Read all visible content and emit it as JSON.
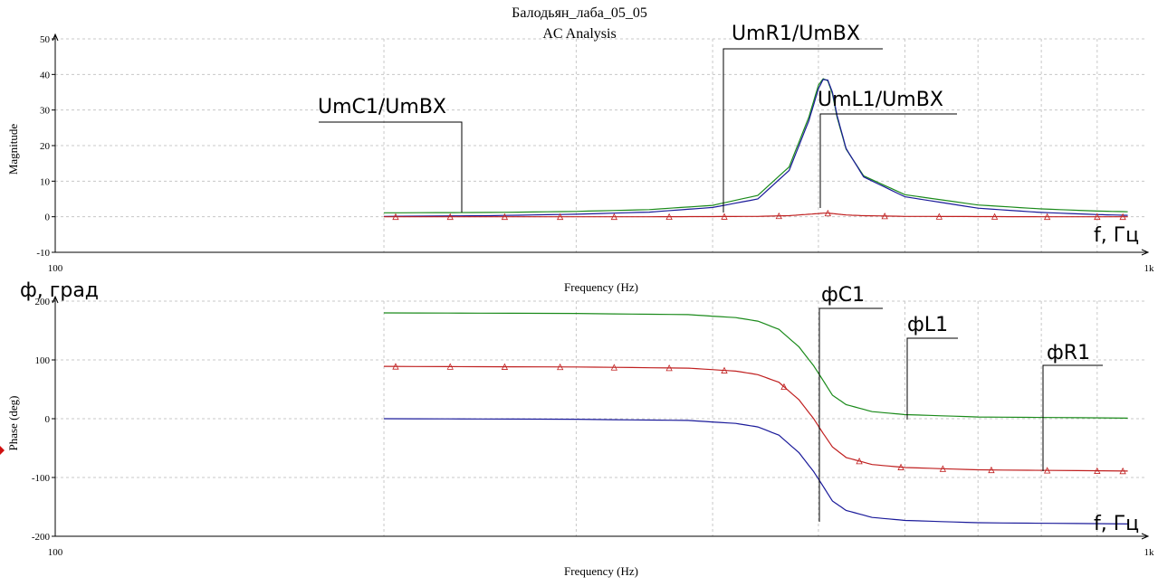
{
  "window": {
    "title": "Балодьян_лаба_05_05",
    "subtitle": "AC Analysis"
  },
  "annotations": {
    "mag_c1": "UmC1/UmBX",
    "mag_r1": "UmR1/UmBX",
    "mag_l1": "UmL1/UmBX",
    "mag_freq_unit": "f, Гц",
    "phase_unit": "ф, град",
    "phase_c1": "фC1",
    "phase_l1": "фL1",
    "phase_r1": "фR1",
    "phase_freq_unit": "f, Гц"
  },
  "colors": {
    "background": "#ffffff",
    "grid": "#c8c8c8",
    "axis": "#000000",
    "series_green": "#1a8a1a",
    "series_blue": "#1a1a9a",
    "series_red": "#c02020",
    "marker": "#c02020"
  },
  "chart_data": [
    {
      "type": "line",
      "xscale": "log",
      "xlabel": "Frequency (Hz)",
      "ylabel": "Magnitude",
      "xlim": [
        100,
        1000
      ],
      "ylim": [
        -10,
        50
      ],
      "x_ticks": [
        "100",
        "1k"
      ],
      "y_ticks": [
        -10,
        0,
        10,
        20,
        30,
        40,
        50
      ],
      "grid": true,
      "series": [
        {
          "color": "green",
          "x": [
            200,
            250,
            300,
            350,
            400,
            440,
            470,
            490,
            500,
            505,
            510,
            515,
            520,
            530,
            550,
            600,
            700,
            800,
            900,
            960
          ],
          "y": [
            1.1,
            1.2,
            1.5,
            2.0,
            3.2,
            6,
            14,
            28,
            37,
            38.8,
            38.2,
            34.5,
            28,
            19,
            11.5,
            6.2,
            3.3,
            2.2,
            1.6,
            1.4
          ]
        },
        {
          "color": "blue",
          "x": [
            200,
            250,
            300,
            350,
            400,
            440,
            470,
            490,
            500,
            505,
            510,
            515,
            520,
            530,
            550,
            600,
            700,
            800,
            900,
            960
          ],
          "y": [
            0.1,
            0.3,
            0.7,
            1.3,
            2.6,
            5,
            13,
            27,
            36,
            38.6,
            38.4,
            35,
            28.5,
            19.2,
            11.2,
            5.6,
            2.4,
            1.2,
            0.6,
            0.4
          ]
        },
        {
          "color": "red",
          "x": [
            200,
            250,
            300,
            350,
            400,
            440,
            470,
            490,
            500,
            505,
            510,
            515,
            520,
            530,
            550,
            600,
            700,
            800,
            900,
            960
          ],
          "y": [
            0,
            0,
            0,
            0,
            0.05,
            0.1,
            0.3,
            0.7,
            0.9,
            1.0,
            1.0,
            0.9,
            0.75,
            0.5,
            0.3,
            0.1,
            0.05,
            0,
            0,
            0
          ],
          "markers": [
            205,
            230,
            258,
            290,
            325,
            365,
            410,
            460,
            510,
            575,
            645,
            725,
            810,
            900,
            950
          ]
        }
      ]
    },
    {
      "type": "line",
      "xscale": "log",
      "xlabel": "Frequency (Hz)",
      "ylabel": "Phase (deg)",
      "xlim": [
        100,
        1000
      ],
      "ylim": [
        -200,
        200
      ],
      "x_ticks": [
        "100",
        "1k"
      ],
      "y_ticks": [
        -200,
        -100,
        0,
        100,
        200
      ],
      "grid": true,
      "series": [
        {
          "color": "green",
          "x": [
            200,
            300,
            380,
            420,
            440,
            460,
            480,
            495,
            505,
            515,
            530,
            560,
            600,
            700,
            960
          ],
          "y": [
            180,
            179,
            177,
            172,
            166,
            152,
            122,
            90,
            65,
            40,
            24,
            12,
            7,
            3,
            1
          ]
        },
        {
          "color": "red",
          "x": [
            200,
            300,
            380,
            420,
            440,
            460,
            480,
            495,
            505,
            515,
            530,
            560,
            600,
            700,
            960
          ],
          "y": [
            89,
            88,
            86,
            81,
            75,
            62,
            32,
            0,
            -25,
            -48,
            -66,
            -78,
            -83,
            -87,
            -89
          ],
          "markers": [
            205,
            230,
            258,
            290,
            325,
            365,
            410,
            465,
            545,
            595,
            650,
            720,
            810,
            900,
            950
          ]
        },
        {
          "color": "blue",
          "x": [
            200,
            300,
            380,
            420,
            440,
            460,
            480,
            495,
            505,
            515,
            530,
            560,
            600,
            700,
            960
          ],
          "y": [
            0,
            -1,
            -3,
            -8,
            -14,
            -28,
            -58,
            -90,
            -115,
            -140,
            -156,
            -168,
            -173,
            -177,
            -179
          ]
        }
      ]
    }
  ]
}
